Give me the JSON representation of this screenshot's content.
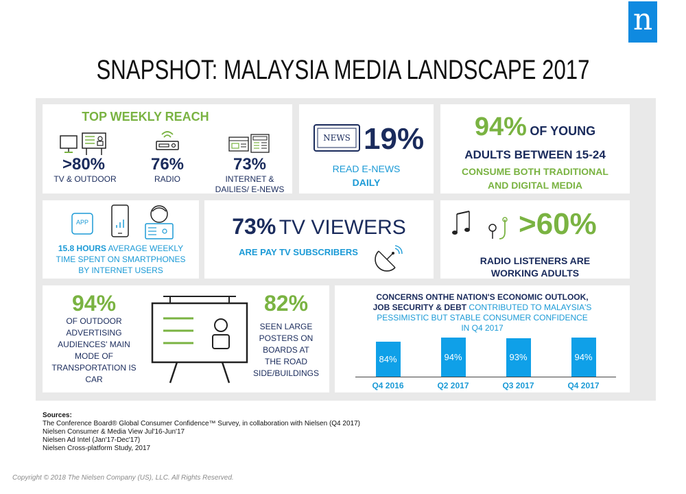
{
  "logo": {
    "letter": "n",
    "color": "#0f8ae0"
  },
  "title": "SNAPSHOT: MALAYSIA MEDIA LANDSCAPE 2017",
  "colors": {
    "green": "#7ab342",
    "navy": "#1a2b5c",
    "blue": "#1b9ad6",
    "bar": "#0fa0e8",
    "panel": "#e9e9e9"
  },
  "reach": {
    "heading": "TOP WEEKLY REACH",
    "items": [
      {
        "icon": "tv-outdoor-icon",
        "value": ">80%",
        "label": "TV & OUTDOOR"
      },
      {
        "icon": "radio-icon",
        "value": "76%",
        "label": "RADIO"
      },
      {
        "icon": "newspaper-icon",
        "value": "73%",
        "label1": "INTERNET &",
        "label2": "DAILIES/ E-NEWS"
      }
    ]
  },
  "enews": {
    "icon_text": "NEWS",
    "value": "19%",
    "line1": "READ E-NEWS",
    "line2": "DAILY"
  },
  "young": {
    "value": "94%",
    "line1_rest": "OF YOUNG",
    "line2": "ADULTS BETWEEN 15-24",
    "line3": "CONSUME BOTH TRADITIONAL",
    "line4": "AND DIGITAL MEDIA"
  },
  "smartphone": {
    "app_label": "APP",
    "hours": "15.8 HOURS",
    "line1_rest": "AVERAGE WEEKLY",
    "line2": "TIME SPENT ON SMARTPHONES",
    "line3": "BY INTERNET USERS"
  },
  "paytv": {
    "value": "73%",
    "value_rest": "TV VIEWERS",
    "line2": "ARE PAY TV SUBSCRIBERS"
  },
  "radio_listeners": {
    "value": ">60%",
    "line1": "RADIO LISTENERS ARE",
    "line2": "WORKING ADULTS"
  },
  "outdoor": {
    "left_value": "94%",
    "left_lines": [
      "OF OUTDOOR",
      "ADVERTISING",
      "AUDIENCES' MAIN",
      "MODE OF",
      "TRANSPORTATION  IS",
      "CAR"
    ],
    "right_value": "82%",
    "right_lines": [
      "SEEN LARGE",
      "POSTERS ON",
      "BOARDS AT",
      "THE ROAD",
      "SIDE/BUILDINGS"
    ]
  },
  "confidence": {
    "line1": "CONCERNS ONTHE NATION'S ECONOMIC OUTLOOK,",
    "line2_bold": "JOB SECURITY & DEBT",
    "line2_rest": "CONTRIBUTED TO MALAYSIA'S",
    "line3": "PESSIMISTIC BUT STABLE CONSUMER CONFIDENCE",
    "line4": "IN Q4 2017"
  },
  "chart_data": {
    "type": "bar",
    "categories": [
      "Q4 2016",
      "Q2 2017",
      "Q3 2017",
      "Q4 2017"
    ],
    "values": [
      84,
      94,
      93,
      94
    ],
    "value_labels": [
      "84%",
      "94%",
      "93%",
      "94%"
    ],
    "title": "",
    "xlabel": "",
    "ylabel": "",
    "ylim": [
      0,
      100
    ],
    "grid": false
  },
  "sources": {
    "heading": "Sources:",
    "lines": [
      "The Conference Board® Global Consumer Confidence™ Survey, in collaboration with Nielsen (Q4 2017)",
      "Nielsen Consumer & Media View Jul'16-Jun'17",
      "Nielsen Ad Intel (Jan'17-Dec'17)",
      "Nielsen Cross-platform Study, 2017"
    ]
  },
  "copyright": "Copyright © 2018 The Nielsen Company (US), LLC. All Rights Reserved."
}
